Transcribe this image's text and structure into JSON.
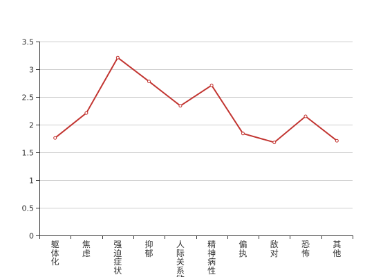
{
  "chart_data": {
    "type": "line",
    "categories": [
      "躯体化",
      "焦虑",
      "强迫症状",
      "抑郁",
      "人际关系敏感",
      "精神病性",
      "偏执",
      "敌对",
      "恐怖",
      "其他"
    ],
    "series": [
      {
        "values": [
          1.76,
          2.21,
          3.21,
          2.78,
          2.34,
          2.71,
          1.84,
          1.68,
          2.15,
          1.71
        ]
      }
    ],
    "ylim": [
      0,
      3.5
    ],
    "yticks": [
      "0",
      "0.5",
      "1",
      "1.5",
      "2",
      "2.5",
      "3",
      "3.5"
    ],
    "grid": true,
    "marker": "hollow-circle",
    "colors": {
      "line": "#c23531",
      "axis": "#333333",
      "grid": "#cccccc",
      "text": "#333333",
      "marker_fill": "#ffffff"
    }
  }
}
